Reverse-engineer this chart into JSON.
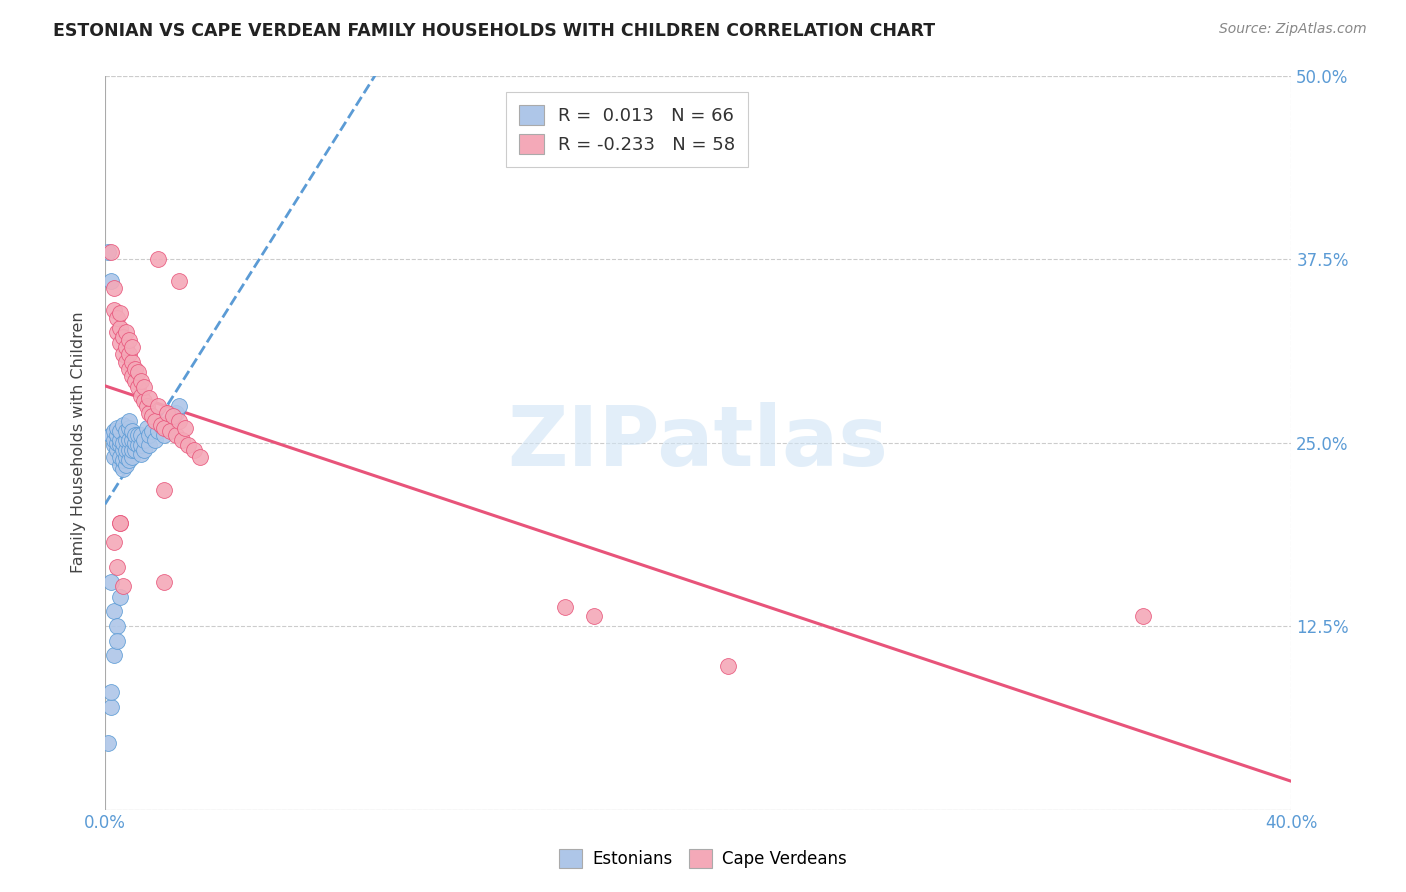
{
  "title": "ESTONIAN VS CAPE VERDEAN FAMILY HOUSEHOLDS WITH CHILDREN CORRELATION CHART",
  "source": "Source: ZipAtlas.com",
  "ylabel": "Family Households with Children",
  "xlim": [
    0.0,
    0.4
  ],
  "ylim": [
    0.0,
    0.5
  ],
  "xtick_vals": [
    0.0,
    0.05,
    0.1,
    0.15,
    0.2,
    0.25,
    0.3,
    0.35,
    0.4
  ],
  "xtick_show_labels": [
    0.0,
    0.4
  ],
  "ytick_vals": [
    0.0,
    0.125,
    0.25,
    0.375,
    0.5
  ],
  "ytick_labels_right": [
    "",
    "12.5%",
    "25.0%",
    "37.5%",
    "50.0%"
  ],
  "estonian_color": "#aec6e8",
  "cape_verdean_color": "#f4a9b8",
  "estonian_line_color": "#5b9bd5",
  "cape_verdean_line_color": "#e8547a",
  "watermark_text": "ZIPatlas",
  "estonian_scatter_x": [
    0.001,
    0.002,
    0.002,
    0.002,
    0.003,
    0.003,
    0.003,
    0.003,
    0.004,
    0.004,
    0.004,
    0.004,
    0.005,
    0.005,
    0.005,
    0.005,
    0.005,
    0.006,
    0.006,
    0.006,
    0.006,
    0.006,
    0.007,
    0.007,
    0.007,
    0.007,
    0.007,
    0.008,
    0.008,
    0.008,
    0.008,
    0.008,
    0.009,
    0.009,
    0.009,
    0.009,
    0.01,
    0.01,
    0.01,
    0.011,
    0.011,
    0.012,
    0.012,
    0.012,
    0.013,
    0.013,
    0.014,
    0.015,
    0.015,
    0.016,
    0.017,
    0.018,
    0.019,
    0.02,
    0.021,
    0.022,
    0.024,
    0.025,
    0.003,
    0.004,
    0.002,
    0.003,
    0.004,
    0.005,
    0.001,
    0.002
  ],
  "estonian_scatter_y": [
    0.045,
    0.07,
    0.08,
    0.255,
    0.24,
    0.248,
    0.252,
    0.258,
    0.245,
    0.25,
    0.255,
    0.26,
    0.235,
    0.24,
    0.248,
    0.252,
    0.258,
    0.232,
    0.238,
    0.245,
    0.25,
    0.262,
    0.235,
    0.24,
    0.245,
    0.252,
    0.258,
    0.238,
    0.245,
    0.252,
    0.26,
    0.265,
    0.24,
    0.245,
    0.252,
    0.258,
    0.245,
    0.25,
    0.255,
    0.248,
    0.255,
    0.242,
    0.248,
    0.255,
    0.245,
    0.252,
    0.26,
    0.248,
    0.255,
    0.258,
    0.252,
    0.258,
    0.262,
    0.255,
    0.26,
    0.265,
    0.27,
    0.275,
    0.135,
    0.125,
    0.155,
    0.105,
    0.115,
    0.145,
    0.38,
    0.36
  ],
  "cape_verdean_scatter_x": [
    0.002,
    0.003,
    0.003,
    0.004,
    0.004,
    0.005,
    0.005,
    0.005,
    0.006,
    0.006,
    0.007,
    0.007,
    0.007,
    0.008,
    0.008,
    0.008,
    0.009,
    0.009,
    0.009,
    0.01,
    0.01,
    0.011,
    0.011,
    0.012,
    0.012,
    0.013,
    0.013,
    0.014,
    0.015,
    0.015,
    0.016,
    0.017,
    0.018,
    0.019,
    0.02,
    0.021,
    0.022,
    0.023,
    0.024,
    0.025,
    0.026,
    0.027,
    0.028,
    0.03,
    0.032,
    0.004,
    0.006,
    0.02,
    0.025,
    0.018,
    0.165,
    0.21,
    0.155,
    0.005,
    0.003,
    0.35,
    0.005,
    0.02
  ],
  "cape_verdean_scatter_y": [
    0.38,
    0.34,
    0.355,
    0.325,
    0.335,
    0.318,
    0.328,
    0.338,
    0.31,
    0.322,
    0.305,
    0.315,
    0.325,
    0.3,
    0.31,
    0.32,
    0.295,
    0.305,
    0.315,
    0.292,
    0.3,
    0.288,
    0.298,
    0.282,
    0.292,
    0.278,
    0.288,
    0.275,
    0.27,
    0.28,
    0.268,
    0.265,
    0.275,
    0.262,
    0.26,
    0.27,
    0.258,
    0.268,
    0.255,
    0.265,
    0.252,
    0.26,
    0.248,
    0.245,
    0.24,
    0.165,
    0.152,
    0.218,
    0.36,
    0.375,
    0.132,
    0.098,
    0.138,
    0.195,
    0.182,
    0.132,
    0.195,
    0.155
  ],
  "regression_x_start": 0.0,
  "regression_x_end": 0.4
}
